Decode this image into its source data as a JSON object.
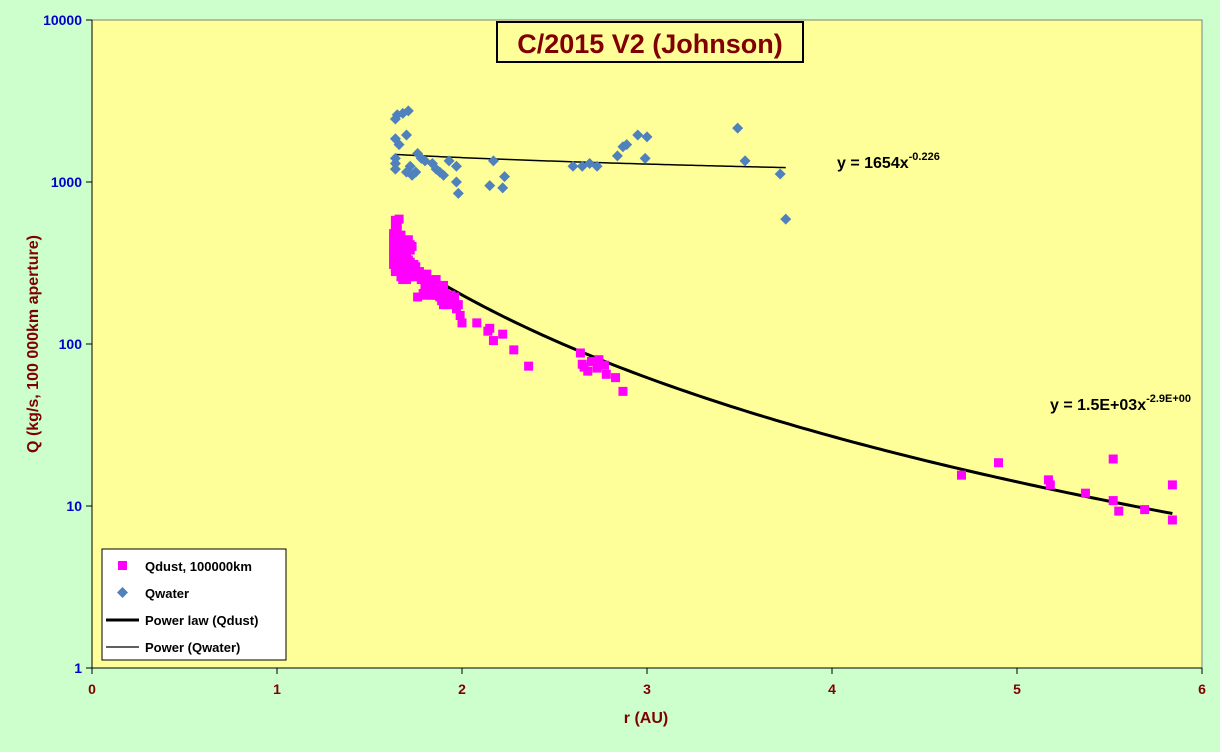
{
  "chart_data": {
    "type": "scatter",
    "title": "C/2015 V2 (Johnson)",
    "xlabel": "r (AU)",
    "ylabel": "Q (kg/s, 100 000km aperture)",
    "xlim": [
      0,
      6
    ],
    "ylim": [
      1,
      10000
    ],
    "yscale": "log",
    "x_ticks": [
      "0",
      "1",
      "2",
      "3",
      "4",
      "5",
      "6"
    ],
    "y_ticks": [
      "1",
      "10",
      "100",
      "1000",
      "10000"
    ],
    "grid": false,
    "legend_position": "bottom-left",
    "colors": {
      "plot_background": "#ffff99",
      "outer_background": "#ccffcc",
      "title_text": "#800000",
      "title_box": "#ffff99",
      "axis_label": "#800000",
      "tick_x": "#800000",
      "tick_y": "#0000cc",
      "qdust": "#ff00ff",
      "qwater": "#4f81bd",
      "trend": "#000000"
    },
    "series": [
      {
        "name": "Qdust, 100000km",
        "marker": "square",
        "points": [
          [
            1.63,
            480
          ],
          [
            1.63,
            440
          ],
          [
            1.63,
            400
          ],
          [
            1.63,
            370
          ],
          [
            1.63,
            340
          ],
          [
            1.63,
            310
          ],
          [
            1.64,
            580
          ],
          [
            1.64,
            520
          ],
          [
            1.64,
            450
          ],
          [
            1.64,
            420
          ],
          [
            1.64,
            380
          ],
          [
            1.64,
            350
          ],
          [
            1.64,
            300
          ],
          [
            1.64,
            280
          ],
          [
            1.65,
            560
          ],
          [
            1.65,
            500
          ],
          [
            1.65,
            430
          ],
          [
            1.65,
            390
          ],
          [
            1.65,
            330
          ],
          [
            1.66,
            590
          ],
          [
            1.66,
            460
          ],
          [
            1.66,
            410
          ],
          [
            1.66,
            360
          ],
          [
            1.66,
            320
          ],
          [
            1.67,
            470
          ],
          [
            1.67,
            390
          ],
          [
            1.67,
            340
          ],
          [
            1.67,
            300
          ],
          [
            1.67,
            260
          ],
          [
            1.68,
            430
          ],
          [
            1.68,
            370
          ],
          [
            1.68,
            330
          ],
          [
            1.68,
            290
          ],
          [
            1.68,
            250
          ],
          [
            1.69,
            400
          ],
          [
            1.69,
            350
          ],
          [
            1.69,
            310
          ],
          [
            1.69,
            270
          ],
          [
            1.7,
            360
          ],
          [
            1.7,
            330
          ],
          [
            1.7,
            280
          ],
          [
            1.7,
            250
          ],
          [
            1.71,
            440
          ],
          [
            1.71,
            330
          ],
          [
            1.71,
            300
          ],
          [
            1.71,
            260
          ],
          [
            1.72,
            410
          ],
          [
            1.72,
            380
          ],
          [
            1.72,
            320
          ],
          [
            1.72,
            280
          ],
          [
            1.73,
            400
          ],
          [
            1.73,
            300
          ],
          [
            1.73,
            270
          ],
          [
            1.74,
            310
          ],
          [
            1.74,
            260
          ],
          [
            1.75,
            300
          ],
          [
            1.75,
            270
          ],
          [
            1.76,
            195
          ],
          [
            1.77,
            280
          ],
          [
            1.78,
            250
          ],
          [
            1.79,
            260
          ],
          [
            1.79,
            205
          ],
          [
            1.8,
            230
          ],
          [
            1.8,
            200
          ],
          [
            1.81,
            270
          ],
          [
            1.82,
            210
          ],
          [
            1.82,
            240
          ],
          [
            1.83,
            220
          ],
          [
            1.84,
            200
          ],
          [
            1.85,
            245
          ],
          [
            1.85,
            230
          ],
          [
            1.86,
            250
          ],
          [
            1.86,
            200
          ],
          [
            1.87,
            215
          ],
          [
            1.88,
            195
          ],
          [
            1.89,
            185
          ],
          [
            1.9,
            230
          ],
          [
            1.9,
            175
          ],
          [
            1.91,
            205
          ],
          [
            1.92,
            190
          ],
          [
            1.93,
            175
          ],
          [
            1.94,
            200
          ],
          [
            1.95,
            180
          ],
          [
            1.96,
            195
          ],
          [
            1.97,
            165
          ],
          [
            1.98,
            175
          ],
          [
            1.99,
            150
          ],
          [
            2.0,
            135
          ],
          [
            2.08,
            135
          ],
          [
            2.14,
            120
          ],
          [
            2.15,
            125
          ],
          [
            2.17,
            105
          ],
          [
            2.22,
            115
          ],
          [
            2.28,
            92
          ],
          [
            2.36,
            73
          ],
          [
            2.64,
            88
          ],
          [
            2.65,
            75
          ],
          [
            2.66,
            72
          ],
          [
            2.68,
            68
          ],
          [
            2.7,
            78
          ],
          [
            2.73,
            71
          ],
          [
            2.74,
            80
          ],
          [
            2.77,
            74
          ],
          [
            2.78,
            65
          ],
          [
            2.83,
            62
          ],
          [
            2.87,
            51
          ],
          [
            4.7,
            15.5
          ],
          [
            4.9,
            18.5
          ],
          [
            5.17,
            14.5
          ],
          [
            5.18,
            13.5
          ],
          [
            5.37,
            12
          ],
          [
            5.52,
            19.5
          ],
          [
            5.52,
            10.8
          ],
          [
            5.55,
            9.3
          ],
          [
            5.69,
            9.5
          ],
          [
            5.84,
            13.5
          ],
          [
            5.84,
            8.2
          ]
        ]
      },
      {
        "name": "Qwater",
        "marker": "diamond",
        "points": [
          [
            1.64,
            2450
          ],
          [
            1.64,
            1850
          ],
          [
            1.64,
            1400
          ],
          [
            1.64,
            1300
          ],
          [
            1.64,
            1200
          ],
          [
            1.65,
            2600
          ],
          [
            1.66,
            1700
          ],
          [
            1.68,
            2650
          ],
          [
            1.7,
            1950
          ],
          [
            1.7,
            1150
          ],
          [
            1.71,
            2750
          ],
          [
            1.72,
            1250
          ],
          [
            1.73,
            1100
          ],
          [
            1.75,
            1150
          ],
          [
            1.76,
            1500
          ],
          [
            1.78,
            1400
          ],
          [
            1.8,
            1350
          ],
          [
            1.84,
            1300
          ],
          [
            1.86,
            1200
          ],
          [
            1.88,
            1150
          ],
          [
            1.9,
            1100
          ],
          [
            1.93,
            1350
          ],
          [
            1.97,
            1250
          ],
          [
            1.97,
            1000
          ],
          [
            1.98,
            850
          ],
          [
            2.15,
            950
          ],
          [
            2.17,
            1350
          ],
          [
            2.22,
            920
          ],
          [
            2.23,
            1080
          ],
          [
            2.6,
            1250
          ],
          [
            2.65,
            1250
          ],
          [
            2.69,
            1300
          ],
          [
            2.73,
            1250
          ],
          [
            2.84,
            1450
          ],
          [
            2.87,
            1650
          ],
          [
            2.89,
            1700
          ],
          [
            2.95,
            1950
          ],
          [
            2.99,
            1400
          ],
          [
            3.0,
            1900
          ],
          [
            3.49,
            2150
          ],
          [
            3.53,
            1350
          ],
          [
            3.72,
            1120
          ],
          [
            3.75,
            590
          ]
        ]
      }
    ],
    "trendlines": [
      {
        "name": "Power law (Qdust)",
        "coef": 1500,
        "exponent": -2.9,
        "x_range": [
          1.63,
          5.84
        ],
        "label": "y = 1.5E+03x",
        "label_exp": "-2.9E+00"
      },
      {
        "name": "Power (Qwater)",
        "coef": 1654,
        "exponent": -0.226,
        "x_range": [
          1.64,
          3.75
        ],
        "label": "y = 1654x",
        "label_exp": "-0.226"
      }
    ],
    "legend": [
      "Qdust, 100000km",
      "Qwater",
      "Power law (Qdust)",
      "Power (Qwater)"
    ]
  }
}
